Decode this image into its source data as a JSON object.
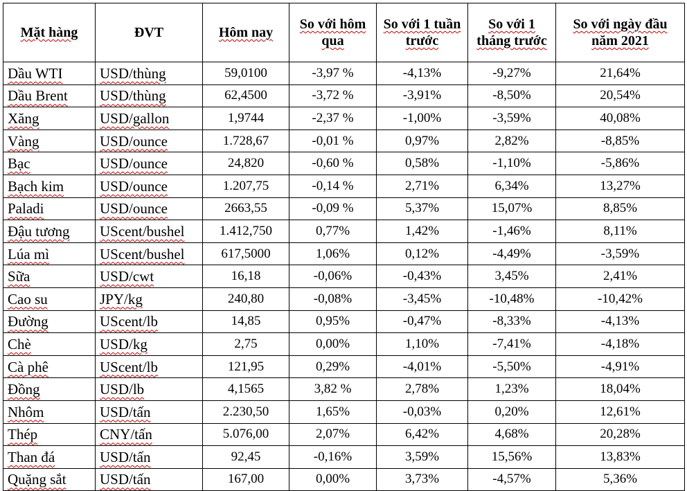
{
  "headers": {
    "item": "Mặt hàng",
    "unit": "ĐVT",
    "today": "Hôm nay",
    "vs_yesterday": "So với hôm qua",
    "vs_week": "So với 1 tuần trước",
    "vs_month": "So với 1 tháng trước",
    "vs_year_start": "So với ngày đầu năm 2021"
  },
  "rows": [
    {
      "item": "Dầu WTI",
      "unit": "USD/thùng",
      "today": "59,0100",
      "d1": "-3,97 %",
      "w1": "-4,13%",
      "m1": "-9,27%",
      "ytd": "21,64%"
    },
    {
      "item": "Dầu Brent",
      "unit": "USD/thùng",
      "today": "62,4500",
      "d1": "-3,72 %",
      "w1": "-3,91%",
      "m1": "-8,50%",
      "ytd": "20,54%"
    },
    {
      "item": "Xăng",
      "unit": "USD/gallon",
      "today": "1,9744",
      "d1": "-2,37 %",
      "w1": "-1,00%",
      "m1": "-3,59%",
      "ytd": "40,08%"
    },
    {
      "item": "Vàng",
      "unit": "USD/ounce",
      "today": "1.728,67",
      "d1": "-0,01 %",
      "w1": "0,97%",
      "m1": "2,82%",
      "ytd": "-8,85%"
    },
    {
      "item": "Bạc",
      "unit": "USD/ounce",
      "today": "24,820",
      "d1": "-0,60 %",
      "w1": "0,58%",
      "m1": "-1,10%",
      "ytd": "-5,86%"
    },
    {
      "item": "Bạch kim",
      "unit": "USD/ounce",
      "today": "1.207,75",
      "d1": "-0,14 %",
      "w1": "2,71%",
      "m1": "6,34%",
      "ytd": "13,27%"
    },
    {
      "item": "Paladi",
      "unit": "USD/ounce",
      "today": "2663,55",
      "d1": "-0,09 %",
      "w1": "5,37%",
      "m1": "15,07%",
      "ytd": "8,85%"
    },
    {
      "item": "Đậu tương",
      "unit": "UScent/bushel",
      "today": "1.412,750",
      "d1": "0,77%",
      "w1": "1,42%",
      "m1": "-1,46%",
      "ytd": "8,11%"
    },
    {
      "item": "Lúa mì",
      "unit": "UScent/bushel",
      "today": "617,5000",
      "d1": "1,06%",
      "w1": "0,12%",
      "m1": "-4,49%",
      "ytd": "-3,59%"
    },
    {
      "item": "Sữa",
      "unit": "USD/cwt",
      "today": "16,18",
      "d1": "-0,06%",
      "w1": "-0,43%",
      "m1": "3,45%",
      "ytd": "2,41%"
    },
    {
      "item": "Cao su",
      "unit": "JPY/kg",
      "today": "240,80",
      "d1": "-0,08%",
      "w1": "-3,45%",
      "m1": "-10,48%",
      "ytd": "-10,42%"
    },
    {
      "item": "Đường",
      "unit": "UScent/lb",
      "today": "14,85",
      "d1": "0,95%",
      "w1": "-0,47%",
      "m1": "-8,33%",
      "ytd": "-4,13%"
    },
    {
      "item": "Chè",
      "unit": "USD/kg",
      "today": "2,75",
      "d1": "0,00%",
      "w1": "1,10%",
      "m1": "-7,41%",
      "ytd": "-4,18%"
    },
    {
      "item": "Cà phê",
      "unit": "UScent/lb",
      "today": "121,95",
      "d1": "0,29%",
      "w1": "-4,01%",
      "m1": "-5,50%",
      "ytd": "-4,91%"
    },
    {
      "item": "Đồng",
      "unit": "USD/lb",
      "today": "4,1565",
      "d1": "3,82 %",
      "w1": "2,78%",
      "m1": "1,23%",
      "ytd": "18,04%"
    },
    {
      "item": "Nhôm",
      "unit": "USD/tấn",
      "today": "2.230,50",
      "d1": "1,65%",
      "w1": "-0,03%",
      "m1": "0,20%",
      "ytd": "12,61%"
    },
    {
      "item": "Thép",
      "unit": "CNY/tấn",
      "today": "5.076,00",
      "d1": "2,07%",
      "w1": "6,42%",
      "m1": "4,68%",
      "ytd": "20,28%"
    },
    {
      "item": "Than đá",
      "unit": "USD/tấn",
      "today": "92,45",
      "d1": "-0,16%",
      "w1": "3,59%",
      "m1": "15,56%",
      "ytd": "13,83%"
    },
    {
      "item": "Quặng sắt",
      "unit": "USD/tấn",
      "today": "167,00",
      "d1": "0,00%",
      "w1": "3,73%",
      "m1": "-4,57%",
      "ytd": "5,36%"
    }
  ]
}
